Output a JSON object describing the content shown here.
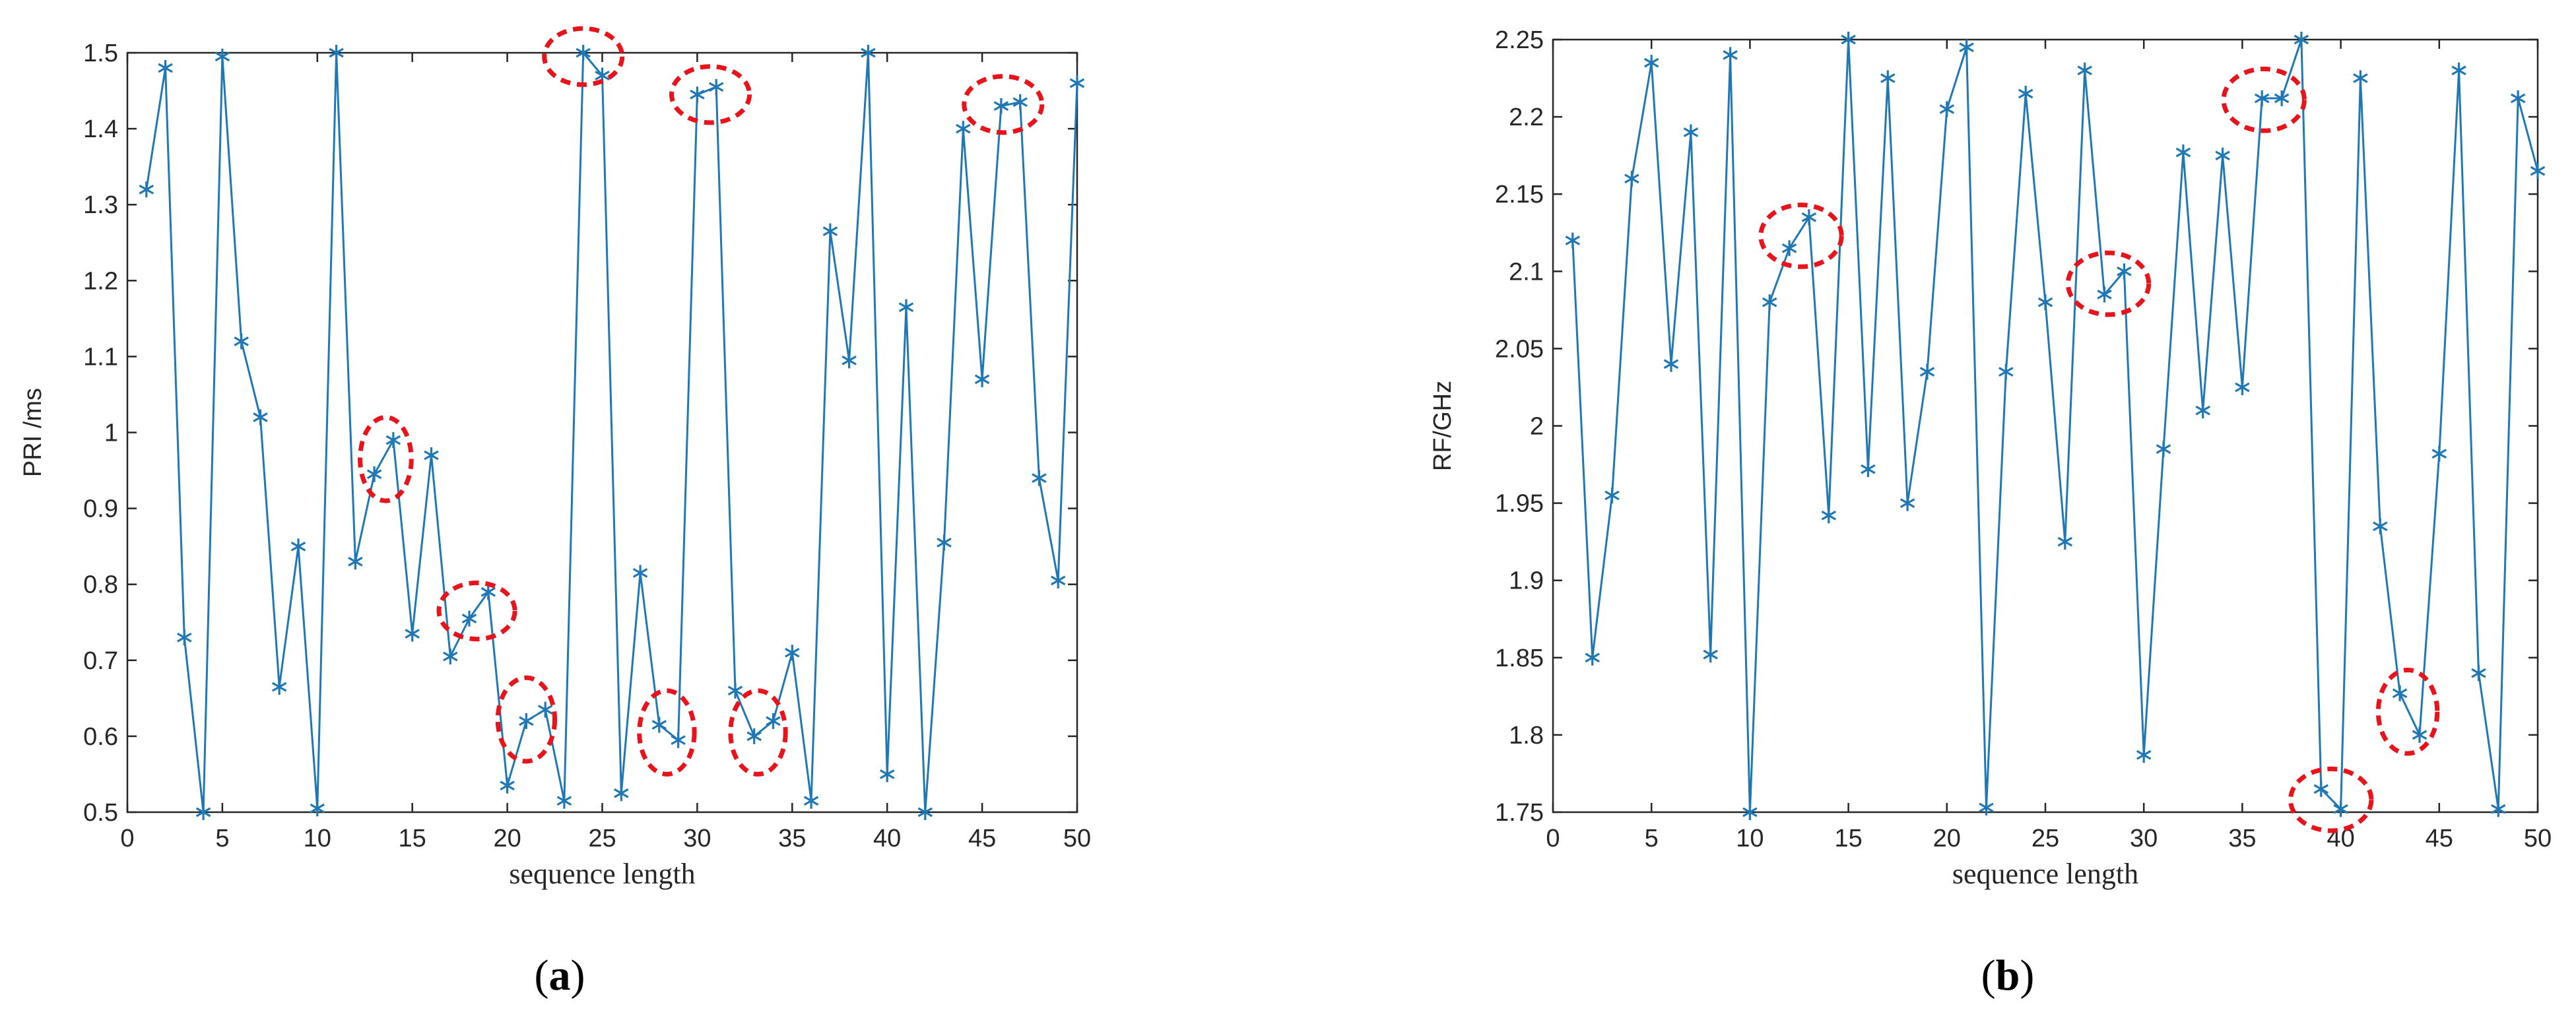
{
  "chart_data": [
    {
      "type": "line",
      "panel_label": "(a)",
      "panel_letter": "a",
      "xlabel": "sequence length",
      "ylabel": "PRI /ms",
      "xlim": [
        0,
        50
      ],
      "ylim": [
        0.5,
        1.5
      ],
      "xticks": [
        0,
        5,
        10,
        15,
        20,
        25,
        30,
        35,
        40,
        45,
        50
      ],
      "xtick_labels": [
        "0",
        "5",
        "10",
        "15",
        "20",
        "25",
        "30",
        "35",
        "40",
        "45",
        "50"
      ],
      "yticks": [
        0.5,
        0.6,
        0.7,
        0.8,
        0.9,
        1.0,
        1.1,
        1.2,
        1.3,
        1.4,
        1.5
      ],
      "ytick_labels": [
        "0.5",
        "0.6",
        "0.7",
        "0.8",
        "0.9",
        "1",
        "1.1",
        "1.2",
        "1.3",
        "1.4",
        "1.5"
      ],
      "grid": false,
      "marker": "asterisk",
      "line_color": "#1f77b4",
      "x": [
        1,
        2,
        3,
        4,
        5,
        6,
        7,
        8,
        9,
        10,
        11,
        12,
        13,
        14,
        15,
        16,
        17,
        18,
        19,
        20,
        21,
        22,
        23,
        24,
        25,
        26,
        27,
        28,
        29,
        30,
        31,
        32,
        33,
        34,
        35,
        36,
        37,
        38,
        39,
        40,
        41,
        42,
        43,
        44,
        45,
        46,
        47,
        48,
        49,
        50
      ],
      "y": [
        1.32,
        1.48,
        0.73,
        0.5,
        1.495,
        1.12,
        1.02,
        0.665,
        0.85,
        0.505,
        1.5,
        0.83,
        0.945,
        0.99,
        0.735,
        0.97,
        0.705,
        0.755,
        0.79,
        0.535,
        0.62,
        0.635,
        0.515,
        1.5,
        1.47,
        0.525,
        0.815,
        0.615,
        0.595,
        1.445,
        1.455,
        0.66,
        0.6,
        0.62,
        0.71,
        0.515,
        1.265,
        1.095,
        1.5,
        0.55,
        1.165,
        0.5,
        0.855,
        1.4,
        1.07,
        1.43,
        1.435,
        0.94,
        0.805,
        1.46
      ],
      "annotations": [
        {
          "shape": "ellipse",
          "color": "#e8141b",
          "cx": 13.6,
          "cy": 0.965,
          "rx": 1.35,
          "ry": 0.055
        },
        {
          "shape": "ellipse",
          "color": "#e8141b",
          "cx": 18.4,
          "cy": 0.765,
          "rx": 2.0,
          "ry": 0.037
        },
        {
          "shape": "ellipse",
          "color": "#e8141b",
          "cx": 21.0,
          "cy": 0.622,
          "rx": 1.5,
          "ry": 0.055
        },
        {
          "shape": "ellipse",
          "color": "#e8141b",
          "cx": 24.0,
          "cy": 1.495,
          "rx": 2.05,
          "ry": 0.037
        },
        {
          "shape": "ellipse",
          "color": "#e8141b",
          "cx": 28.4,
          "cy": 0.605,
          "rx": 1.45,
          "ry": 0.055
        },
        {
          "shape": "ellipse",
          "color": "#e8141b",
          "cx": 30.7,
          "cy": 1.445,
          "rx": 2.05,
          "ry": 0.037
        },
        {
          "shape": "ellipse",
          "color": "#e8141b",
          "cx": 33.2,
          "cy": 0.605,
          "rx": 1.45,
          "ry": 0.055
        },
        {
          "shape": "ellipse",
          "color": "#e8141b",
          "cx": 46.1,
          "cy": 1.432,
          "rx": 2.05,
          "ry": 0.037
        }
      ]
    },
    {
      "type": "line",
      "panel_label": "(b)",
      "panel_letter": "b",
      "xlabel": "sequence length",
      "ylabel": "RF/GHz",
      "xlim": [
        0,
        50
      ],
      "ylim": [
        1.75,
        2.25
      ],
      "xticks": [
        0,
        5,
        10,
        15,
        20,
        25,
        30,
        35,
        40,
        45,
        50
      ],
      "xtick_labels": [
        "0",
        "5",
        "10",
        "15",
        "20",
        "25",
        "30",
        "35",
        "40",
        "45",
        "50"
      ],
      "yticks": [
        1.75,
        1.8,
        1.85,
        1.9,
        1.95,
        2.0,
        2.05,
        2.1,
        2.15,
        2.2,
        2.25
      ],
      "ytick_labels": [
        "1.75",
        "1.8",
        "1.85",
        "1.9",
        "1.95",
        "2",
        "2.05",
        "2.1",
        "2.15",
        "2.2",
        "2.25"
      ],
      "grid": false,
      "marker": "asterisk",
      "line_color": "#1f77b4",
      "x": [
        1,
        2,
        3,
        4,
        5,
        6,
        7,
        8,
        9,
        10,
        11,
        12,
        13,
        14,
        15,
        16,
        17,
        18,
        19,
        20,
        21,
        22,
        23,
        24,
        25,
        26,
        27,
        28,
        29,
        30,
        31,
        32,
        33,
        34,
        35,
        36,
        37,
        38,
        39,
        40,
        41,
        42,
        43,
        44,
        45,
        46,
        47,
        48,
        49,
        50
      ],
      "y": [
        2.12,
        1.85,
        1.955,
        2.16,
        2.235,
        2.04,
        2.19,
        1.852,
        2.24,
        1.75,
        2.08,
        2.115,
        2.135,
        1.942,
        2.25,
        1.972,
        2.225,
        1.95,
        2.035,
        2.205,
        2.245,
        1.753,
        2.035,
        2.215,
        2.08,
        1.925,
        2.23,
        2.085,
        2.1,
        1.787,
        1.985,
        2.177,
        2.01,
        2.175,
        2.025,
        2.212,
        2.212,
        2.25,
        1.765,
        1.752,
        2.225,
        1.935,
        1.827,
        1.8,
        1.982,
        2.23,
        1.84,
        1.752,
        2.212,
        2.165
      ],
      "annotations": [
        {
          "shape": "ellipse",
          "color": "#e8141b",
          "cx": 12.6,
          "cy": 2.123,
          "rx": 2.05,
          "ry": 0.02
        },
        {
          "shape": "ellipse",
          "color": "#e8141b",
          "cx": 28.2,
          "cy": 2.092,
          "rx": 2.05,
          "ry": 0.02
        },
        {
          "shape": "ellipse",
          "color": "#e8141b",
          "cx": 36.1,
          "cy": 2.211,
          "rx": 2.05,
          "ry": 0.02
        },
        {
          "shape": "ellipse",
          "color": "#e8141b",
          "cx": 39.5,
          "cy": 1.758,
          "rx": 2.05,
          "ry": 0.02
        },
        {
          "shape": "ellipse",
          "color": "#e8141b",
          "cx": 43.4,
          "cy": 1.815,
          "rx": 1.5,
          "ry": 0.027
        }
      ]
    }
  ]
}
